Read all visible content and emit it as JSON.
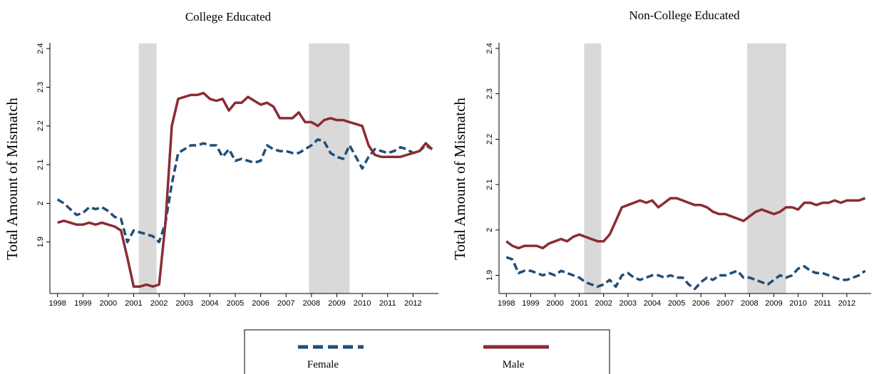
{
  "chart_data": [
    {
      "type": "line",
      "title": "College Educated",
      "y_label": "Total Amount of Mismatch",
      "x": [
        1998,
        1998.25,
        1998.5,
        1998.75,
        1999,
        1999.25,
        1999.5,
        1999.75,
        2000,
        2000.25,
        2000.5,
        2000.75,
        2001,
        2001.25,
        2001.5,
        2001.75,
        2002,
        2002.25,
        2002.5,
        2002.75,
        2003,
        2003.25,
        2003.5,
        2003.75,
        2004,
        2004.25,
        2004.5,
        2004.75,
        2005,
        2005.25,
        2005.5,
        2005.75,
        2006,
        2006.25,
        2006.5,
        2006.75,
        2007,
        2007.25,
        2007.5,
        2007.75,
        2008,
        2008.25,
        2008.5,
        2008.75,
        2009,
        2009.25,
        2009.5,
        2009.75,
        2010,
        2010.25,
        2010.5,
        2010.75,
        2011,
        2011.25,
        2011.5,
        2011.75,
        2012,
        2012.25,
        2012.5,
        2012.75
      ],
      "series": [
        {
          "name": "Female",
          "color": "#1f4e79",
          "dashed": true,
          "values": [
            2.01,
            2.0,
            1.985,
            1.97,
            1.975,
            1.99,
            1.985,
            1.99,
            1.98,
            1.965,
            1.96,
            1.9,
            1.93,
            1.925,
            1.92,
            1.915,
            1.9,
            1.95,
            2.05,
            2.13,
            2.14,
            2.15,
            2.15,
            2.155,
            2.15,
            2.15,
            2.12,
            2.14,
            2.11,
            2.115,
            2.11,
            2.105,
            2.11,
            2.15,
            2.14,
            2.135,
            2.135,
            2.13,
            2.13,
            2.14,
            2.15,
            2.165,
            2.16,
            2.13,
            2.12,
            2.115,
            2.15,
            2.12,
            2.09,
            2.12,
            2.14,
            2.135,
            2.13,
            2.135,
            2.145,
            2.14,
            2.13,
            2.135,
            2.15,
            2.14
          ]
        },
        {
          "name": "Male",
          "color": "#8b2c35",
          "dashed": false,
          "values": [
            1.95,
            1.955,
            1.95,
            1.945,
            1.945,
            1.95,
            1.945,
            1.95,
            1.945,
            1.94,
            1.93,
            1.86,
            1.785,
            1.785,
            1.79,
            1.785,
            1.79,
            1.95,
            2.2,
            2.27,
            2.275,
            2.28,
            2.28,
            2.285,
            2.27,
            2.265,
            2.27,
            2.24,
            2.26,
            2.26,
            2.275,
            2.265,
            2.255,
            2.26,
            2.25,
            2.22,
            2.22,
            2.22,
            2.235,
            2.21,
            2.21,
            2.2,
            2.215,
            2.22,
            2.215,
            2.215,
            2.21,
            2.205,
            2.2,
            2.15,
            2.125,
            2.12,
            2.12,
            2.12,
            2.12,
            2.125,
            2.13,
            2.135,
            2.155,
            2.14
          ]
        }
      ],
      "shaded_x": [
        [
          2001.2,
          2001.9
        ],
        [
          2007.9,
          2009.5
        ]
      ],
      "xlim": [
        1997.7,
        2013.0
      ],
      "xticks": [
        1998,
        1999,
        2000,
        2001,
        2002,
        2003,
        2004,
        2005,
        2006,
        2007,
        2008,
        2009,
        2010,
        2011,
        2012
      ],
      "ylim": [
        1.767,
        2.415
      ],
      "yticks": [
        1.9,
        2,
        2.1,
        2.2,
        2.3,
        2.4
      ],
      "grid": false
    },
    {
      "type": "line",
      "title": "Non-College Educated",
      "y_label": "Total Amount of Mismatch",
      "x": [
        1998,
        1998.25,
        1998.5,
        1998.75,
        1999,
        1999.25,
        1999.5,
        1999.75,
        2000,
        2000.25,
        2000.5,
        2000.75,
        2001,
        2001.25,
        2001.5,
        2001.75,
        2002,
        2002.25,
        2002.5,
        2002.75,
        2003,
        2003.25,
        2003.5,
        2003.75,
        2004,
        2004.25,
        2004.5,
        2004.75,
        2005,
        2005.25,
        2005.5,
        2005.75,
        2006,
        2006.25,
        2006.5,
        2006.75,
        2007,
        2007.25,
        2007.5,
        2007.75,
        2008,
        2008.25,
        2008.5,
        2008.75,
        2009,
        2009.25,
        2009.5,
        2009.75,
        2010,
        2010.25,
        2010.5,
        2010.75,
        2011,
        2011.25,
        2011.5,
        2011.75,
        2012,
        2012.25,
        2012.5,
        2012.75
      ],
      "series": [
        {
          "name": "Female",
          "color": "#1f4e79",
          "dashed": true,
          "values": [
            1.94,
            1.935,
            1.905,
            1.91,
            1.91,
            1.905,
            1.9,
            1.905,
            1.9,
            1.91,
            1.905,
            1.9,
            1.895,
            1.885,
            1.88,
            1.875,
            1.88,
            1.89,
            1.875,
            1.9,
            1.905,
            1.895,
            1.89,
            1.895,
            1.9,
            1.9,
            1.895,
            1.9,
            1.895,
            1.895,
            1.88,
            1.87,
            1.885,
            1.895,
            1.89,
            1.9,
            1.9,
            1.905,
            1.91,
            1.895,
            1.895,
            1.89,
            1.885,
            1.88,
            1.89,
            1.9,
            1.895,
            1.9,
            1.915,
            1.92,
            1.91,
            1.905,
            1.905,
            1.9,
            1.895,
            1.89,
            1.89,
            1.895,
            1.9,
            1.91
          ]
        },
        {
          "name": "Male",
          "color": "#8b2c35",
          "dashed": false,
          "values": [
            1.975,
            1.965,
            1.96,
            1.965,
            1.965,
            1.965,
            1.96,
            1.97,
            1.975,
            1.98,
            1.975,
            1.985,
            1.99,
            1.985,
            1.98,
            1.975,
            1.975,
            1.99,
            2.02,
            2.05,
            2.055,
            2.06,
            2.065,
            2.06,
            2.065,
            2.05,
            2.06,
            2.07,
            2.07,
            2.065,
            2.06,
            2.055,
            2.055,
            2.05,
            2.04,
            2.035,
            2.035,
            2.03,
            2.025,
            2.02,
            2.03,
            2.04,
            2.045,
            2.04,
            2.035,
            2.04,
            2.05,
            2.05,
            2.045,
            2.06,
            2.06,
            2.055,
            2.06,
            2.06,
            2.065,
            2.06,
            2.065,
            2.065,
            2.065,
            2.07
          ]
        }
      ],
      "shaded_x": [
        [
          2001.2,
          2001.9
        ],
        [
          2007.9,
          2009.5
        ]
      ],
      "xlim": [
        1997.7,
        2013.0
      ],
      "xticks": [
        1998,
        1999,
        2000,
        2001,
        2002,
        2003,
        2004,
        2005,
        2006,
        2007,
        2008,
        2009,
        2010,
        2011,
        2012
      ],
      "ylim": [
        1.86,
        2.4125
      ],
      "yticks": [
        1.9,
        2,
        2.1,
        2.2,
        2.3,
        2.4
      ],
      "grid": false
    }
  ]
}
